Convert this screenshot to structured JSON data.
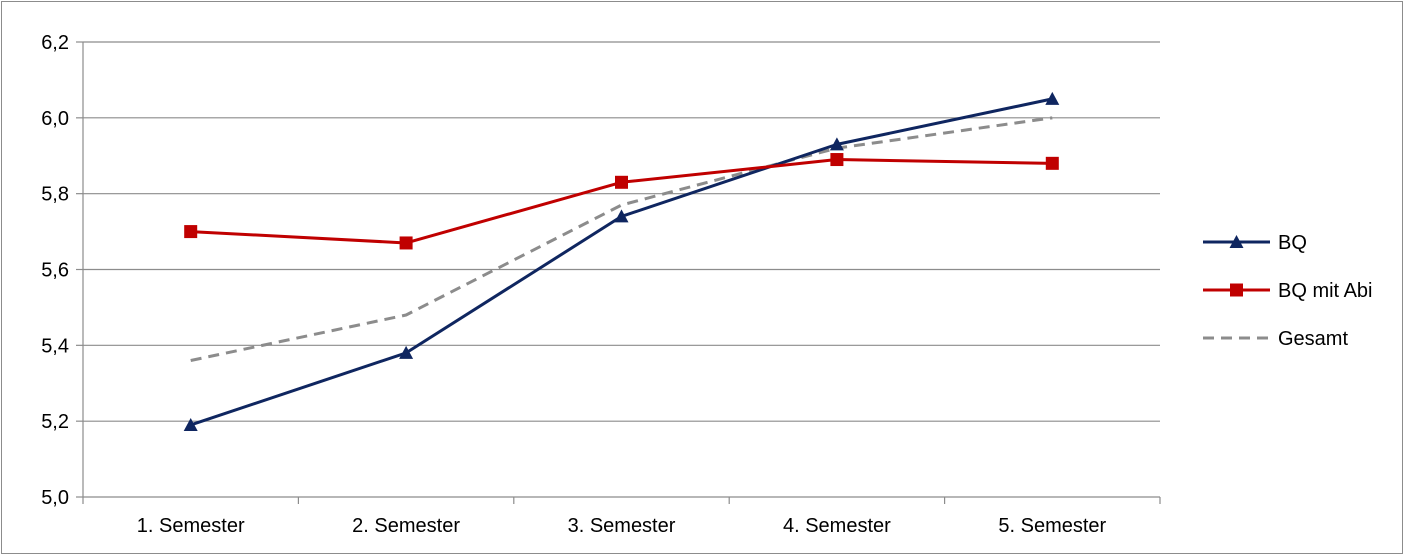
{
  "chart_data": {
    "type": "line",
    "title": "",
    "xlabel": "",
    "ylabel": "",
    "categories": [
      "1. Semester",
      "2. Semester",
      "3. Semester",
      "4. Semester",
      "5. Semester"
    ],
    "ylim": [
      5.0,
      6.2
    ],
    "yticks": [
      "5,0",
      "5,2",
      "5,4",
      "5,6",
      "5,8",
      "6,0",
      "6,2"
    ],
    "grid": true,
    "legend_position": "right",
    "series": [
      {
        "name": "BQ",
        "values": [
          5.19,
          5.38,
          5.74,
          5.93,
          6.05
        ],
        "color": "#0f2660",
        "marker": "triangle",
        "dash": "solid"
      },
      {
        "name": "BQ mit Abi",
        "values": [
          5.7,
          5.67,
          5.83,
          5.89,
          5.88
        ],
        "color": "#c00000",
        "marker": "square",
        "dash": "solid"
      },
      {
        "name": "Gesamt",
        "values": [
          5.36,
          5.48,
          5.77,
          5.92,
          6.0
        ],
        "color": "#8c8c8c",
        "marker": "none",
        "dash": "dashed"
      }
    ]
  }
}
